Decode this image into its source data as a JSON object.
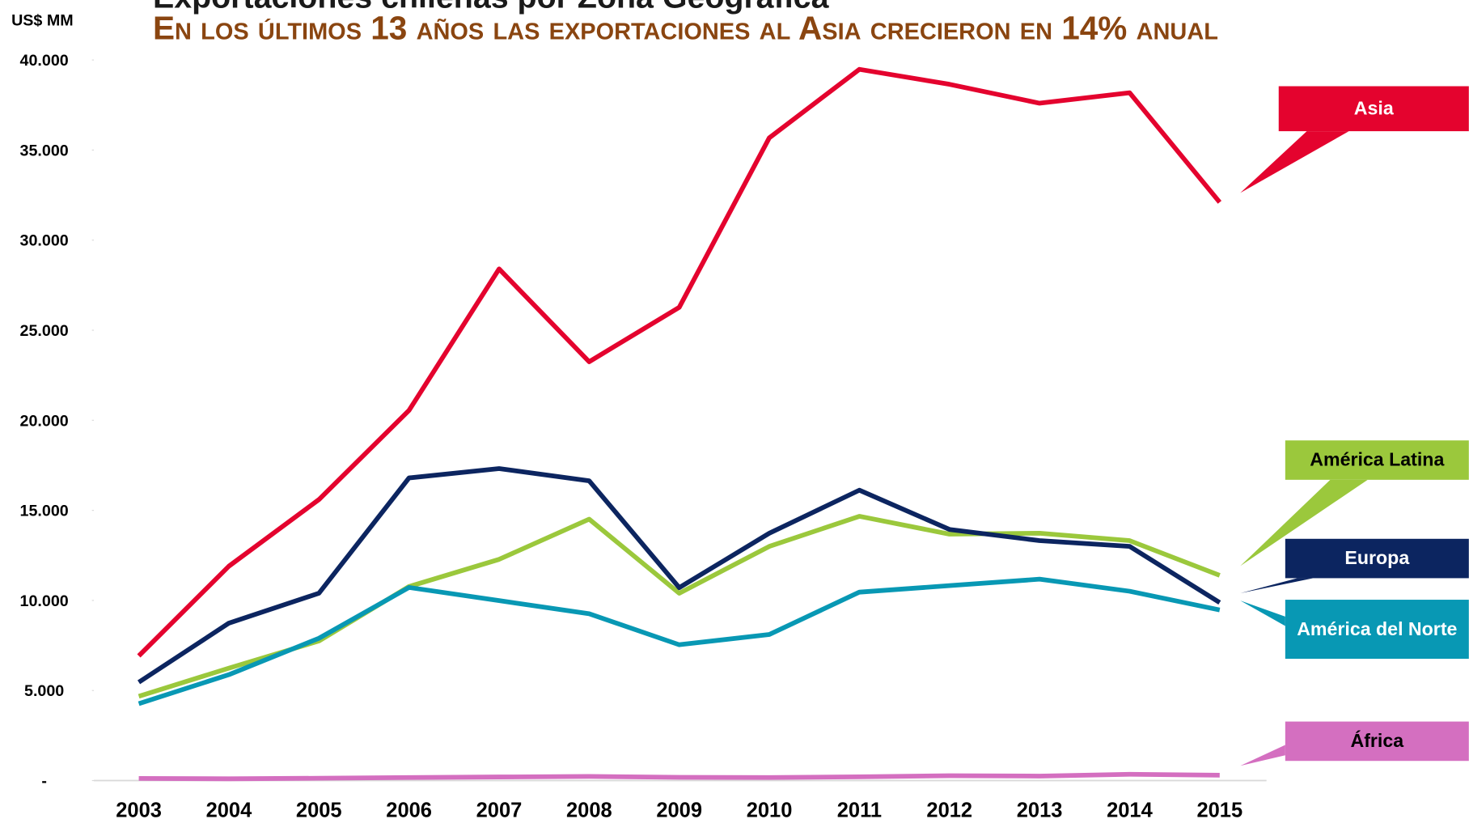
{
  "chart_data": {
    "type": "line",
    "title": "Exportaciones chilenas por Zona Geográfica",
    "subtitle": "En los últimos 13 años las exportaciones al Asia crecieron en 14% anual",
    "y_label": "US$ MM",
    "categories": [
      "2003",
      "2004",
      "2005",
      "2006",
      "2007",
      "2008",
      "2009",
      "2010",
      "2011",
      "2012",
      "2013",
      "2014",
      "2015"
    ],
    "ylim": [
      0,
      40000
    ],
    "yticks": [
      {
        "value": 0,
        "label": "-"
      },
      {
        "value": 5000,
        "label": "5.000"
      },
      {
        "value": 10000,
        "label": "10.000"
      },
      {
        "value": 15000,
        "label": "15.000"
      },
      {
        "value": 20000,
        "label": "20.000"
      },
      {
        "value": 25000,
        "label": "25.000"
      },
      {
        "value": 30000,
        "label": "30.000"
      },
      {
        "value": 35000,
        "label": "35.000"
      },
      {
        "value": 40000,
        "label": "40.000"
      }
    ],
    "series": [
      {
        "name": "Asia",
        "color": "#e4032e",
        "text_color": "#ffffff",
        "values": [
          6920,
          11900,
          15600,
          20550,
          28400,
          23250,
          26270,
          35680,
          39480,
          38650,
          37600,
          38180,
          32100
        ]
      },
      {
        "name": "América Latina",
        "color": "#9bc83c",
        "text_color": "#000000",
        "values": [
          4680,
          6240,
          7750,
          10770,
          12280,
          14510,
          10400,
          13000,
          14670,
          13680,
          13730,
          13320,
          11390
        ]
      },
      {
        "name": "Europa",
        "color": "#0c2560",
        "text_color": "#ffffff",
        "values": [
          5460,
          8740,
          10400,
          16800,
          17320,
          16640,
          10710,
          13730,
          16120,
          13940,
          13320,
          13000,
          9880
        ]
      },
      {
        "name": "América del Norte",
        "color": "#0898b4",
        "text_color": "#ffffff",
        "values": [
          4270,
          5880,
          7900,
          10720,
          9990,
          9260,
          7540,
          8110,
          10460,
          10820,
          11180,
          10510,
          9470
        ]
      },
      {
        "name": "África",
        "color": "#d46fc0",
        "text_color": "#000000",
        "values": [
          120,
          100,
          130,
          170,
          200,
          230,
          180,
          170,
          210,
          270,
          250,
          350,
          300
        ]
      }
    ]
  }
}
